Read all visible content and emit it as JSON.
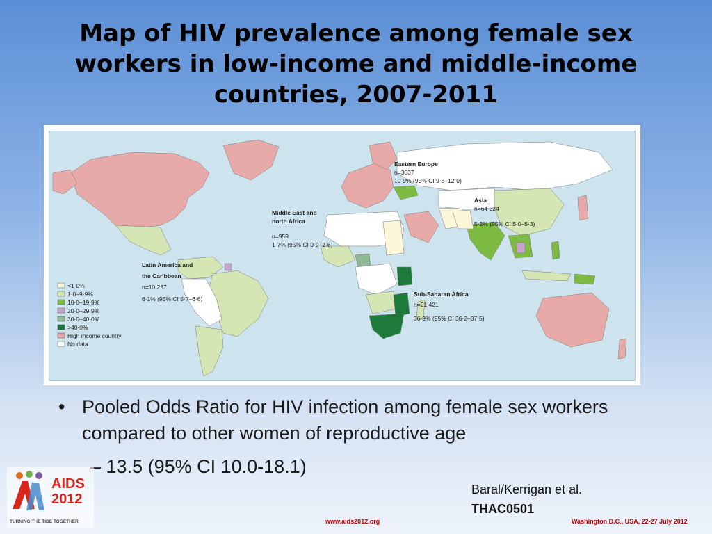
{
  "title": "Map of HIV prevalence among female sex workers in low-income and middle-income countries, 2007-2011",
  "map": {
    "regions": [
      {
        "name": "Eastern Europe",
        "n": "n=3037",
        "ci": "10·9% (95% CI 9·8–12·0)"
      },
      {
        "name": "Asia",
        "n": "n=64 224",
        "ci": "5·2% (95% CI 5·0–5·3)"
      },
      {
        "name_line1": "Middle East and",
        "name_line2": "north Africa",
        "n": "n=959",
        "ci": "1·7% (95% CI 0·9–2·6)"
      },
      {
        "name_line1": "Latin America and",
        "name_line2": "the Caribbean",
        "n": "n=10 237",
        "ci": "6·1% (95% CI 5·7–6·6)"
      },
      {
        "name": "Sub-Saharan Africa",
        "n": "n=21 421",
        "ci": "36·9% (95% CI 36·2–37·5)"
      }
    ],
    "legend": [
      {
        "label": "<1·0%",
        "color": "#fdf6d8"
      },
      {
        "label": "1·0–9·9%",
        "color": "#d5e6b4"
      },
      {
        "label": "10·0–19·9%",
        "color": "#7dbb42"
      },
      {
        "label": "20·0–29·9%",
        "color": "#c9a2cc"
      },
      {
        "label": "30·0–40·0%",
        "color": "#8fb894"
      },
      {
        "label": ">40·0%",
        "color": "#1e7a3b"
      },
      {
        "label": "High income country",
        "color": "#e8a9a9"
      },
      {
        "label": "No data",
        "color": "#ffffff"
      }
    ]
  },
  "bullet": "Pooled Odds Ratio for HIV infection among female sex workers compared to other women of reproductive age",
  "sub_bullet": "13.5 (95% CI 10.0-18.1)",
  "citation": {
    "line1": "Baral/Kerrigan et al.",
    "line2": "THAC0501"
  },
  "logo": {
    "text_top": "AIDS",
    "text_bottom": "2012",
    "tagline": "TURNING THE TIDE TOGETHER"
  },
  "footer": {
    "url": "www.aids2012.org",
    "event": "Washington D.C., USA, 22-27 July 2012"
  }
}
